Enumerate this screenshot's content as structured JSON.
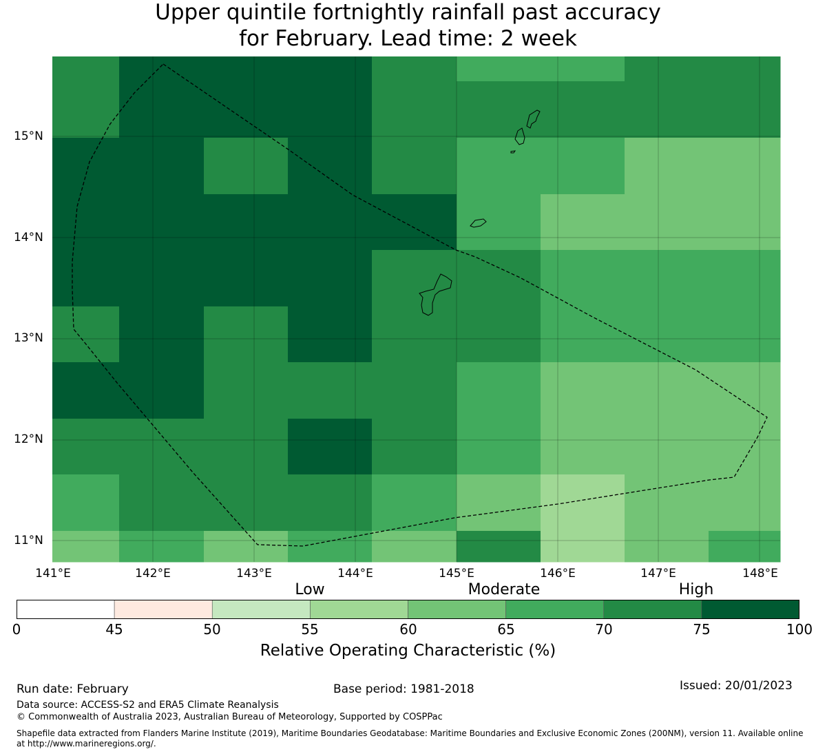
{
  "title": {
    "line1": "Upper quintile fortnightly rainfall past accuracy",
    "line2": "for February. Lead time: 2 week"
  },
  "map": {
    "region": "Guam and Northern Mariana Islands",
    "lat_labels": [
      "15°N",
      "14°N",
      "13°N",
      "12°N",
      "11°N"
    ],
    "lon_labels": [
      "141°E",
      "142°E",
      "143°E",
      "144°E",
      "145°E",
      "146°E",
      "147°E",
      "148°E"
    ],
    "grid_cells": {
      "rows_north_to_south": [
        [
          "70-75",
          "75-100",
          "75-100",
          "75-100",
          "70-75",
          "65-70",
          "65-70",
          "70-75",
          "70-75"
        ],
        [
          "70-75",
          "75-100",
          "75-100",
          "75-100",
          "70-75",
          "70-75",
          "70-75",
          "70-75",
          "70-75"
        ],
        [
          "75-100",
          "75-100",
          "70-75",
          "75-100",
          "70-75",
          "65-70",
          "65-70",
          "60-65",
          "60-65"
        ],
        [
          "75-100",
          "75-100",
          "75-100",
          "75-100",
          "75-100",
          "65-70",
          "60-65",
          "60-65",
          "60-65"
        ],
        [
          "75-100",
          "75-100",
          "75-100",
          "75-100",
          "70-75",
          "70-75",
          "65-70",
          "65-70",
          "65-70"
        ],
        [
          "70-75",
          "75-100",
          "70-75",
          "75-100",
          "70-75",
          "70-75",
          "65-70",
          "65-70",
          "65-70"
        ],
        [
          "75-100",
          "75-100",
          "70-75",
          "70-75",
          "70-75",
          "65-70",
          "60-65",
          "60-65",
          "60-65"
        ],
        [
          "70-75",
          "70-75",
          "70-75",
          "75-100",
          "70-75",
          "65-70",
          "60-65",
          "60-65",
          "60-65"
        ],
        [
          "65-70",
          "70-75",
          "70-75",
          "70-75",
          "65-70",
          "60-65",
          "55-60",
          "60-65",
          "60-65"
        ],
        [
          "60-65",
          "65-70",
          "60-65",
          "65-70",
          "60-65",
          "70-75",
          "55-60",
          "60-65",
          "65-70"
        ]
      ]
    }
  },
  "colorbar": {
    "categories": [
      "Low",
      "Moderate",
      "High"
    ],
    "ticks": [
      "0",
      "45",
      "50",
      "55",
      "60",
      "65",
      "70",
      "75",
      "100"
    ],
    "colors": [
      "#ffffff",
      "#feeae0",
      "#c5e8c0",
      "#a0d895",
      "#73c476",
      "#41ab5d",
      "#238a45",
      "#005a32"
    ],
    "label": "Relative Operating Characteristic (%)"
  },
  "footer": {
    "run_date": "Run date: February",
    "base_period": "Base period: 1981-2018",
    "issued": "Issued: 20/01/2023",
    "data_source": "Data source: ACCESS-S2 and ERA5 Climate Reanalysis",
    "copyright": "© Commonwealth of Australia 2023, Australian Bureau of Meteorology, Supported by COSPPac",
    "shapefile": "Shapefile data extracted from Flanders Marine Institute (2019), Maritime Boundaries Geodatabase: Maritime Boundaries and Exclusive Economic Zones (200NM), version 11. Available online at http://www.marineregions.org/."
  }
}
